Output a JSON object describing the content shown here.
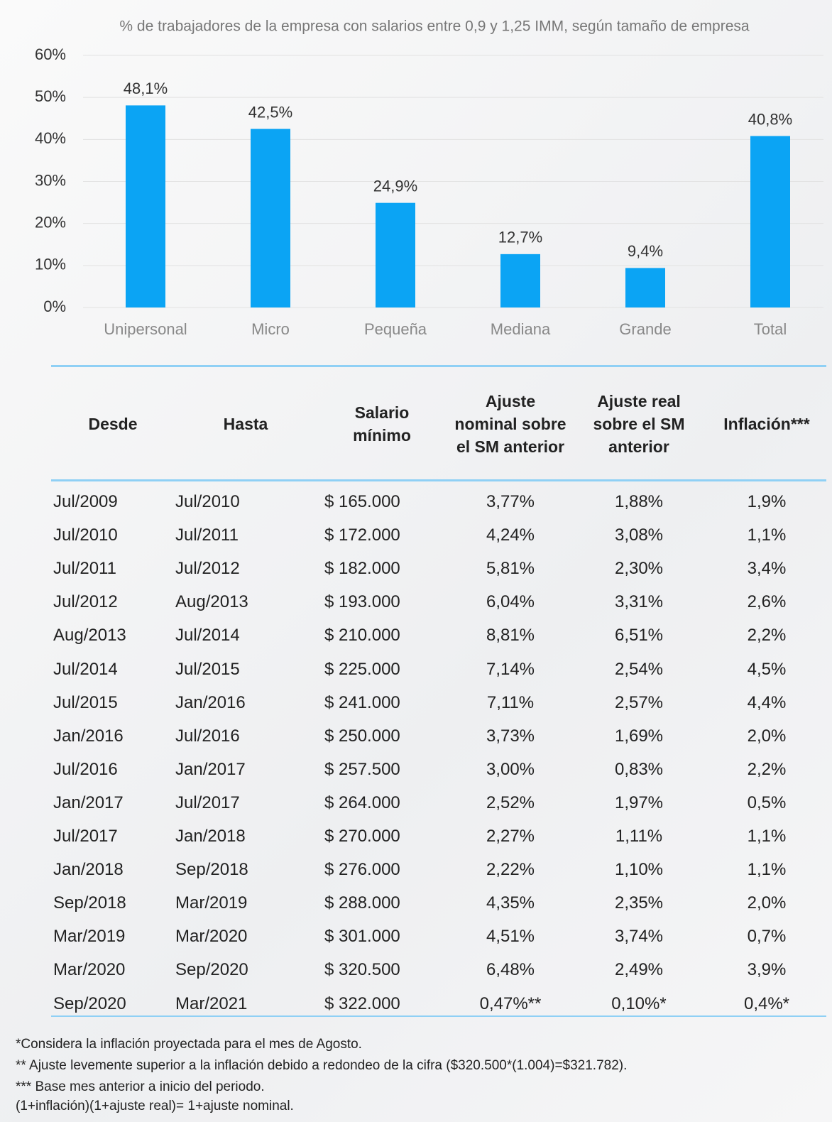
{
  "chart_data": {
    "type": "bar",
    "title": "% de trabajadores de la empresa con salarios entre 0,9 y 1,25 IMM, según tamaño de empresa",
    "categories": [
      "Unipersonal",
      "Micro",
      "Pequeña",
      "Mediana",
      "Grande",
      "Total"
    ],
    "values": [
      48.1,
      42.5,
      24.9,
      12.7,
      9.4,
      40.8
    ],
    "value_labels": [
      "48,1%",
      "42,5%",
      "24,9%",
      "12,7%",
      "9,4%",
      "40,8%"
    ],
    "color": "#0ba4f4",
    "ylim": [
      0,
      60
    ],
    "yticks": [
      {
        "value": 0,
        "label": "0%"
      },
      {
        "value": 10,
        "label": "10%"
      },
      {
        "value": 20,
        "label": "20%"
      },
      {
        "value": 30,
        "label": "30%"
      },
      {
        "value": 40,
        "label": "40%"
      },
      {
        "value": 50,
        "label": "50%"
      },
      {
        "value": 60,
        "label": "60%"
      }
    ],
    "grid": true
  },
  "table": {
    "header": [
      "Desde",
      "Hasta",
      "Salario mínimo",
      "Ajuste nominal sobre el SM anterior",
      "Ajuste real sobre el SM anterior",
      "Inflación***"
    ],
    "rows": [
      [
        "Jul/2009",
        "Jul/2010",
        "$ 165.000",
        "3,77%",
        "1,88%",
        "1,9%"
      ],
      [
        "Jul/2010",
        "Jul/2011",
        "$ 172.000",
        "4,24%",
        "3,08%",
        "1,1%"
      ],
      [
        "Jul/2011",
        "Jul/2012",
        "$ 182.000",
        "5,81%",
        "2,30%",
        "3,4%"
      ],
      [
        "Jul/2012",
        "Aug/2013",
        "$ 193.000",
        "6,04%",
        "3,31%",
        "2,6%"
      ],
      [
        "Aug/2013",
        "Jul/2014",
        "$ 210.000",
        "8,81%",
        "6,51%",
        "2,2%"
      ],
      [
        "Jul/2014",
        "Jul/2015",
        "$ 225.000",
        "7,14%",
        "2,54%",
        "4,5%"
      ],
      [
        "Jul/2015",
        "Jan/2016",
        "$ 241.000",
        "7,11%",
        "2,57%",
        "4,4%"
      ],
      [
        "Jan/2016",
        "Jul/2016",
        "$ 250.000",
        "3,73%",
        "1,69%",
        "2,0%"
      ],
      [
        "Jul/2016",
        "Jan/2017",
        "$ 257.500",
        "3,00%",
        "0,83%",
        "2,2%"
      ],
      [
        "Jan/2017",
        "Jul/2017",
        "$ 264.000",
        "2,52%",
        "1,97%",
        "0,5%"
      ],
      [
        "Jul/2017",
        "Jan/2018",
        "$ 270.000",
        "2,27%",
        "1,11%",
        "1,1%"
      ],
      [
        "Jan/2018",
        "Sep/2018",
        "$ 276.000",
        "2,22%",
        "1,10%",
        "1,1%"
      ],
      [
        "Sep/2018",
        "Mar/2019",
        "$ 288.000",
        "4,35%",
        "2,35%",
        "2,0%"
      ],
      [
        "Mar/2019",
        "Mar/2020",
        "$ 301.000",
        "4,51%",
        "3,74%",
        "0,7%"
      ],
      [
        "Mar/2020",
        "Sep/2020",
        "$ 320.500",
        "6,48%",
        "2,49%",
        "3,9%"
      ],
      [
        "Sep/2020",
        "Mar/2021",
        "$ 322.000",
        "0,47%**",
        "0,10%*",
        "0,4%*"
      ]
    ]
  },
  "notes": [
    "*Considera la inflación proyectada para el mes de Agosto.",
    "** Ajuste levemente superior a la inflación debido a redondeo de la cifra ($320.500*(1.004)=$321.782).",
    "*** Base mes anterior a inicio del periodo.",
    "(1+inflación)(1+ajuste real)= 1+ajuste nominal."
  ]
}
